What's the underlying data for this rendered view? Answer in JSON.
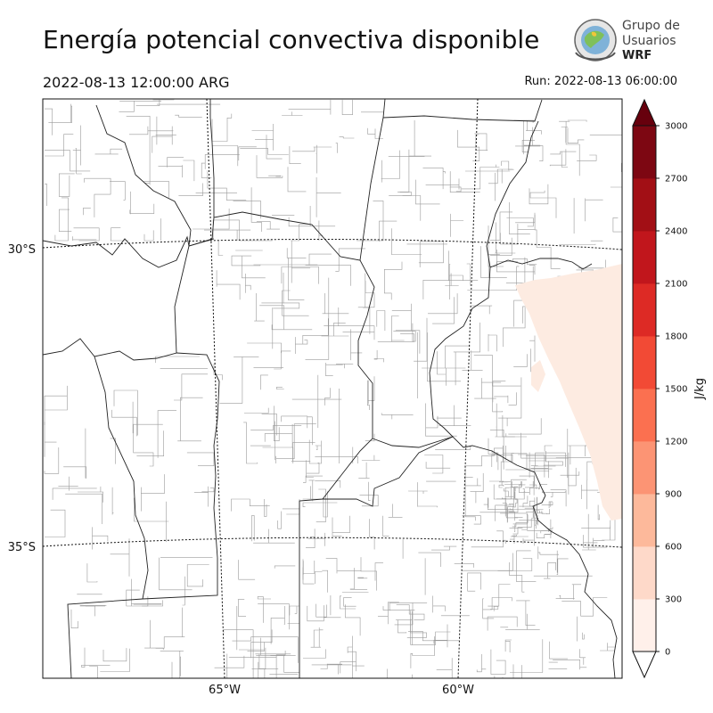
{
  "header": {
    "title": "Energía potencial convectiva disponible",
    "valid_time": "2022-08-13 12:00:00 ARG",
    "run_time": "Run: 2022-08-13 06:00:00"
  },
  "logo": {
    "line1": "Grupo de",
    "line2": "Usuarios",
    "line3": "WRF"
  },
  "chart_data": {
    "type": "heatmap",
    "title": "Energía potencial convectiva disponible",
    "subtitle_left": "2022-08-13 12:00:00 ARG",
    "subtitle_right": "Run: 2022-08-13 06:00:00",
    "latitude_ticks": [
      "30°S",
      "35°S"
    ],
    "longitude_ticks": [
      "65°W",
      "60°W"
    ],
    "colorbar": {
      "label": "J/kg",
      "levels": [
        0,
        300,
        600,
        900,
        1200,
        1500,
        1800,
        2100,
        2400,
        2700,
        3000
      ],
      "tick_labels": [
        "0",
        "300",
        "600",
        "900",
        "1200",
        "1500",
        "1800",
        "2100",
        "2400",
        "2700",
        "3000"
      ],
      "colors": [
        "#fff0ea",
        "#fed9c9",
        "#fdb99b",
        "#fc9474",
        "#fb7050",
        "#f24a35",
        "#dd2a25",
        "#c1161c",
        "#a20f15",
        "#7d0712"
      ],
      "extend": "both",
      "under_color": "#ffffff",
      "over_color": "#67000d"
    },
    "field_note_value_range": [
      0,
      300
    ],
    "grid": true
  },
  "colors": {
    "border_major": "#222222",
    "border_minor": "#9a9a9a",
    "cape_low": "#fdebe1"
  }
}
